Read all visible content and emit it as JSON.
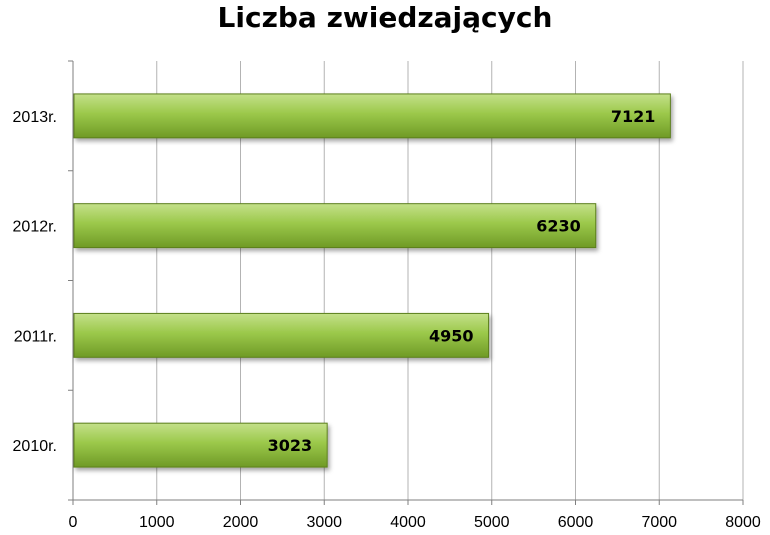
{
  "chart_data": {
    "type": "bar",
    "orientation": "horizontal",
    "title": "Liczba zwiedzających",
    "xlabel": "",
    "ylabel": "",
    "categories": [
      "2013r.",
      "2012r.",
      "2011r.",
      "2010r."
    ],
    "values": [
      7121,
      6230,
      4950,
      3023
    ],
    "data_labels": [
      "7121",
      "6230",
      "4950",
      "3023"
    ],
    "xlim": [
      0,
      8000
    ],
    "xticks": [
      0,
      1000,
      2000,
      3000,
      4000,
      5000,
      6000,
      7000,
      8000
    ],
    "xtick_labels": [
      "0",
      "1000",
      "2000",
      "3000",
      "4000",
      "5000",
      "6000",
      "7000",
      "8000"
    ],
    "grid": "vertical",
    "legend": "none",
    "colors": {
      "bar_light": "#c4e08a",
      "bar_mid": "#9bc84a",
      "bar_dark": "#6f9a26",
      "bar_edge": "#5b7f1e",
      "grid": "#b3b3b3",
      "axis": "#7f7f7f",
      "text": "#000000"
    }
  }
}
